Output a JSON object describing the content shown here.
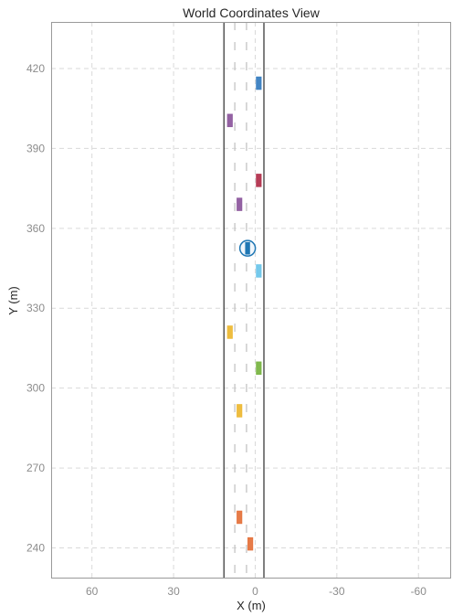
{
  "chart_data": {
    "type": "scatter",
    "title": "World Coordinates View",
    "xlabel": "X (m)",
    "ylabel": "Y (m)",
    "x_reversed": true,
    "xlim": [
      75,
      -72
    ],
    "ylim": [
      228.5,
      437.5
    ],
    "xticks": [
      60,
      30,
      0,
      -30,
      -60
    ],
    "yticks": [
      240,
      270,
      300,
      330,
      360,
      390,
      420
    ],
    "xtick_labels": [
      "60",
      "30",
      "0",
      "-30",
      "-60"
    ],
    "ytick_labels": [
      "240",
      "270",
      "300",
      "330",
      "360",
      "390",
      "420"
    ],
    "grid": true,
    "road": {
      "left_edge_x": 11.5,
      "right_edge_x": -3.2,
      "dashed_lane_x": [
        7.5,
        3.2
      ]
    },
    "ego_vehicle": {
      "x": 2.8,
      "y": 352.5,
      "color": "#1f77b4"
    },
    "vehicles": [
      {
        "x": -1.3,
        "y": 414.5,
        "color": "#3a7fc1"
      },
      {
        "x": 9.3,
        "y": 400.5,
        "color": "#8e5a9e"
      },
      {
        "x": -1.3,
        "y": 378.0,
        "color": "#b2334e"
      },
      {
        "x": 5.8,
        "y": 369.0,
        "color": "#8e5a9e"
      },
      {
        "x": -1.3,
        "y": 344.0,
        "color": "#6ec6ea"
      },
      {
        "x": 9.3,
        "y": 321.0,
        "color": "#edb935"
      },
      {
        "x": -1.3,
        "y": 307.5,
        "color": "#7ab545"
      },
      {
        "x": 5.8,
        "y": 291.5,
        "color": "#edb935"
      },
      {
        "x": 5.8,
        "y": 251.5,
        "color": "#e5743e"
      },
      {
        "x": 1.8,
        "y": 241.5,
        "color": "#e5743e"
      }
    ]
  }
}
